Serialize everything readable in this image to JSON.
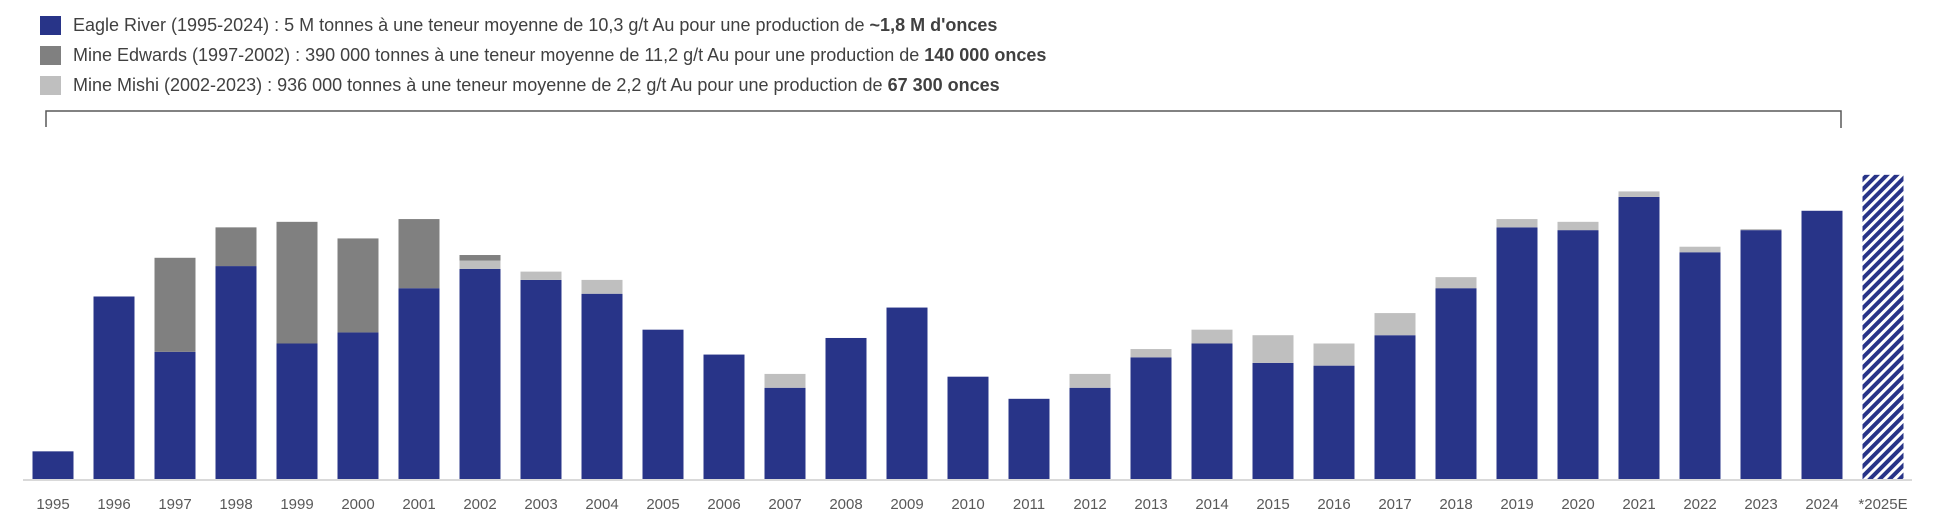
{
  "legend": [
    {
      "name": "Eagle River",
      "text": "Eagle River (1995-2024) : 5 M tonnes à une teneur moyenne de 10,3 g/t Au pour une production de",
      "bold": "~1,8 M d'onces",
      "color": "#283488"
    },
    {
      "name": "Mine Edwards",
      "text": "Mine Edwards (1997-2002) : 390 000 tonnes à une teneur moyenne de 11,2 g/t Au pour une production de",
      "bold": "140 000 onces",
      "color": "#808080"
    },
    {
      "name": "Mine Mishi",
      "text": "Mine Mishi (2002-2023) : 936 000 tonnes à une teneur moyenne de 2,2 g/t Au pour une production de",
      "bold": "67 300 onces",
      "color": "#bfbfbf"
    }
  ],
  "chart_data": {
    "type": "bar",
    "stacked": true,
    "title": "",
    "xlabel": "",
    "ylabel": "",
    "units": "estimated thousand ounces (no axis shown)",
    "ylim": [
      0,
      115
    ],
    "grid": false,
    "legend_position": "top-left",
    "categories": [
      "1995",
      "1996",
      "1997",
      "1998",
      "1999",
      "2000",
      "2001",
      "2002",
      "2003",
      "2004",
      "2005",
      "2006",
      "2007",
      "2008",
      "2009",
      "2010",
      "2011",
      "2012",
      "2013",
      "2014",
      "2015",
      "2016",
      "2017",
      "2018",
      "2019",
      "2020",
      "2021",
      "2022",
      "2023",
      "2024",
      "*2025E"
    ],
    "series": [
      {
        "name": "Eagle River",
        "color": "#283488",
        "values": [
          10,
          66,
          46,
          77,
          49,
          53,
          69,
          76,
          72,
          67,
          54,
          45,
          33,
          51,
          62,
          37,
          29,
          33,
          44,
          49,
          42,
          41,
          52,
          69,
          91,
          90,
          102,
          82,
          90,
          97,
          0
        ]
      },
      {
        "name": "Mine Mishi",
        "color": "#bfbfbf",
        "values": [
          0,
          0,
          0,
          0,
          0,
          0,
          0,
          3,
          3,
          5,
          0,
          0,
          5,
          0,
          0,
          0,
          0,
          5,
          3,
          5,
          10,
          8,
          8,
          4,
          3,
          3,
          2,
          2,
          0.4,
          0,
          0
        ]
      },
      {
        "name": "Mine Edwards",
        "color": "#808080",
        "values": [
          0,
          0,
          34,
          14,
          44,
          34,
          25,
          2,
          0,
          0,
          0,
          0,
          0,
          0,
          0,
          0,
          0,
          0,
          0,
          0,
          0,
          0,
          0,
          0,
          0,
          0,
          0,
          0,
          0,
          0,
          0
        ]
      },
      {
        "name": "Estimate 2025",
        "color": "#283488",
        "pattern": "hatched",
        "values": [
          0,
          0,
          0,
          0,
          0,
          0,
          0,
          0,
          0,
          0,
          0,
          0,
          0,
          0,
          0,
          0,
          0,
          0,
          0,
          0,
          0,
          0,
          0,
          0,
          0,
          0,
          0,
          0,
          0,
          0,
          110
        ]
      }
    ]
  }
}
